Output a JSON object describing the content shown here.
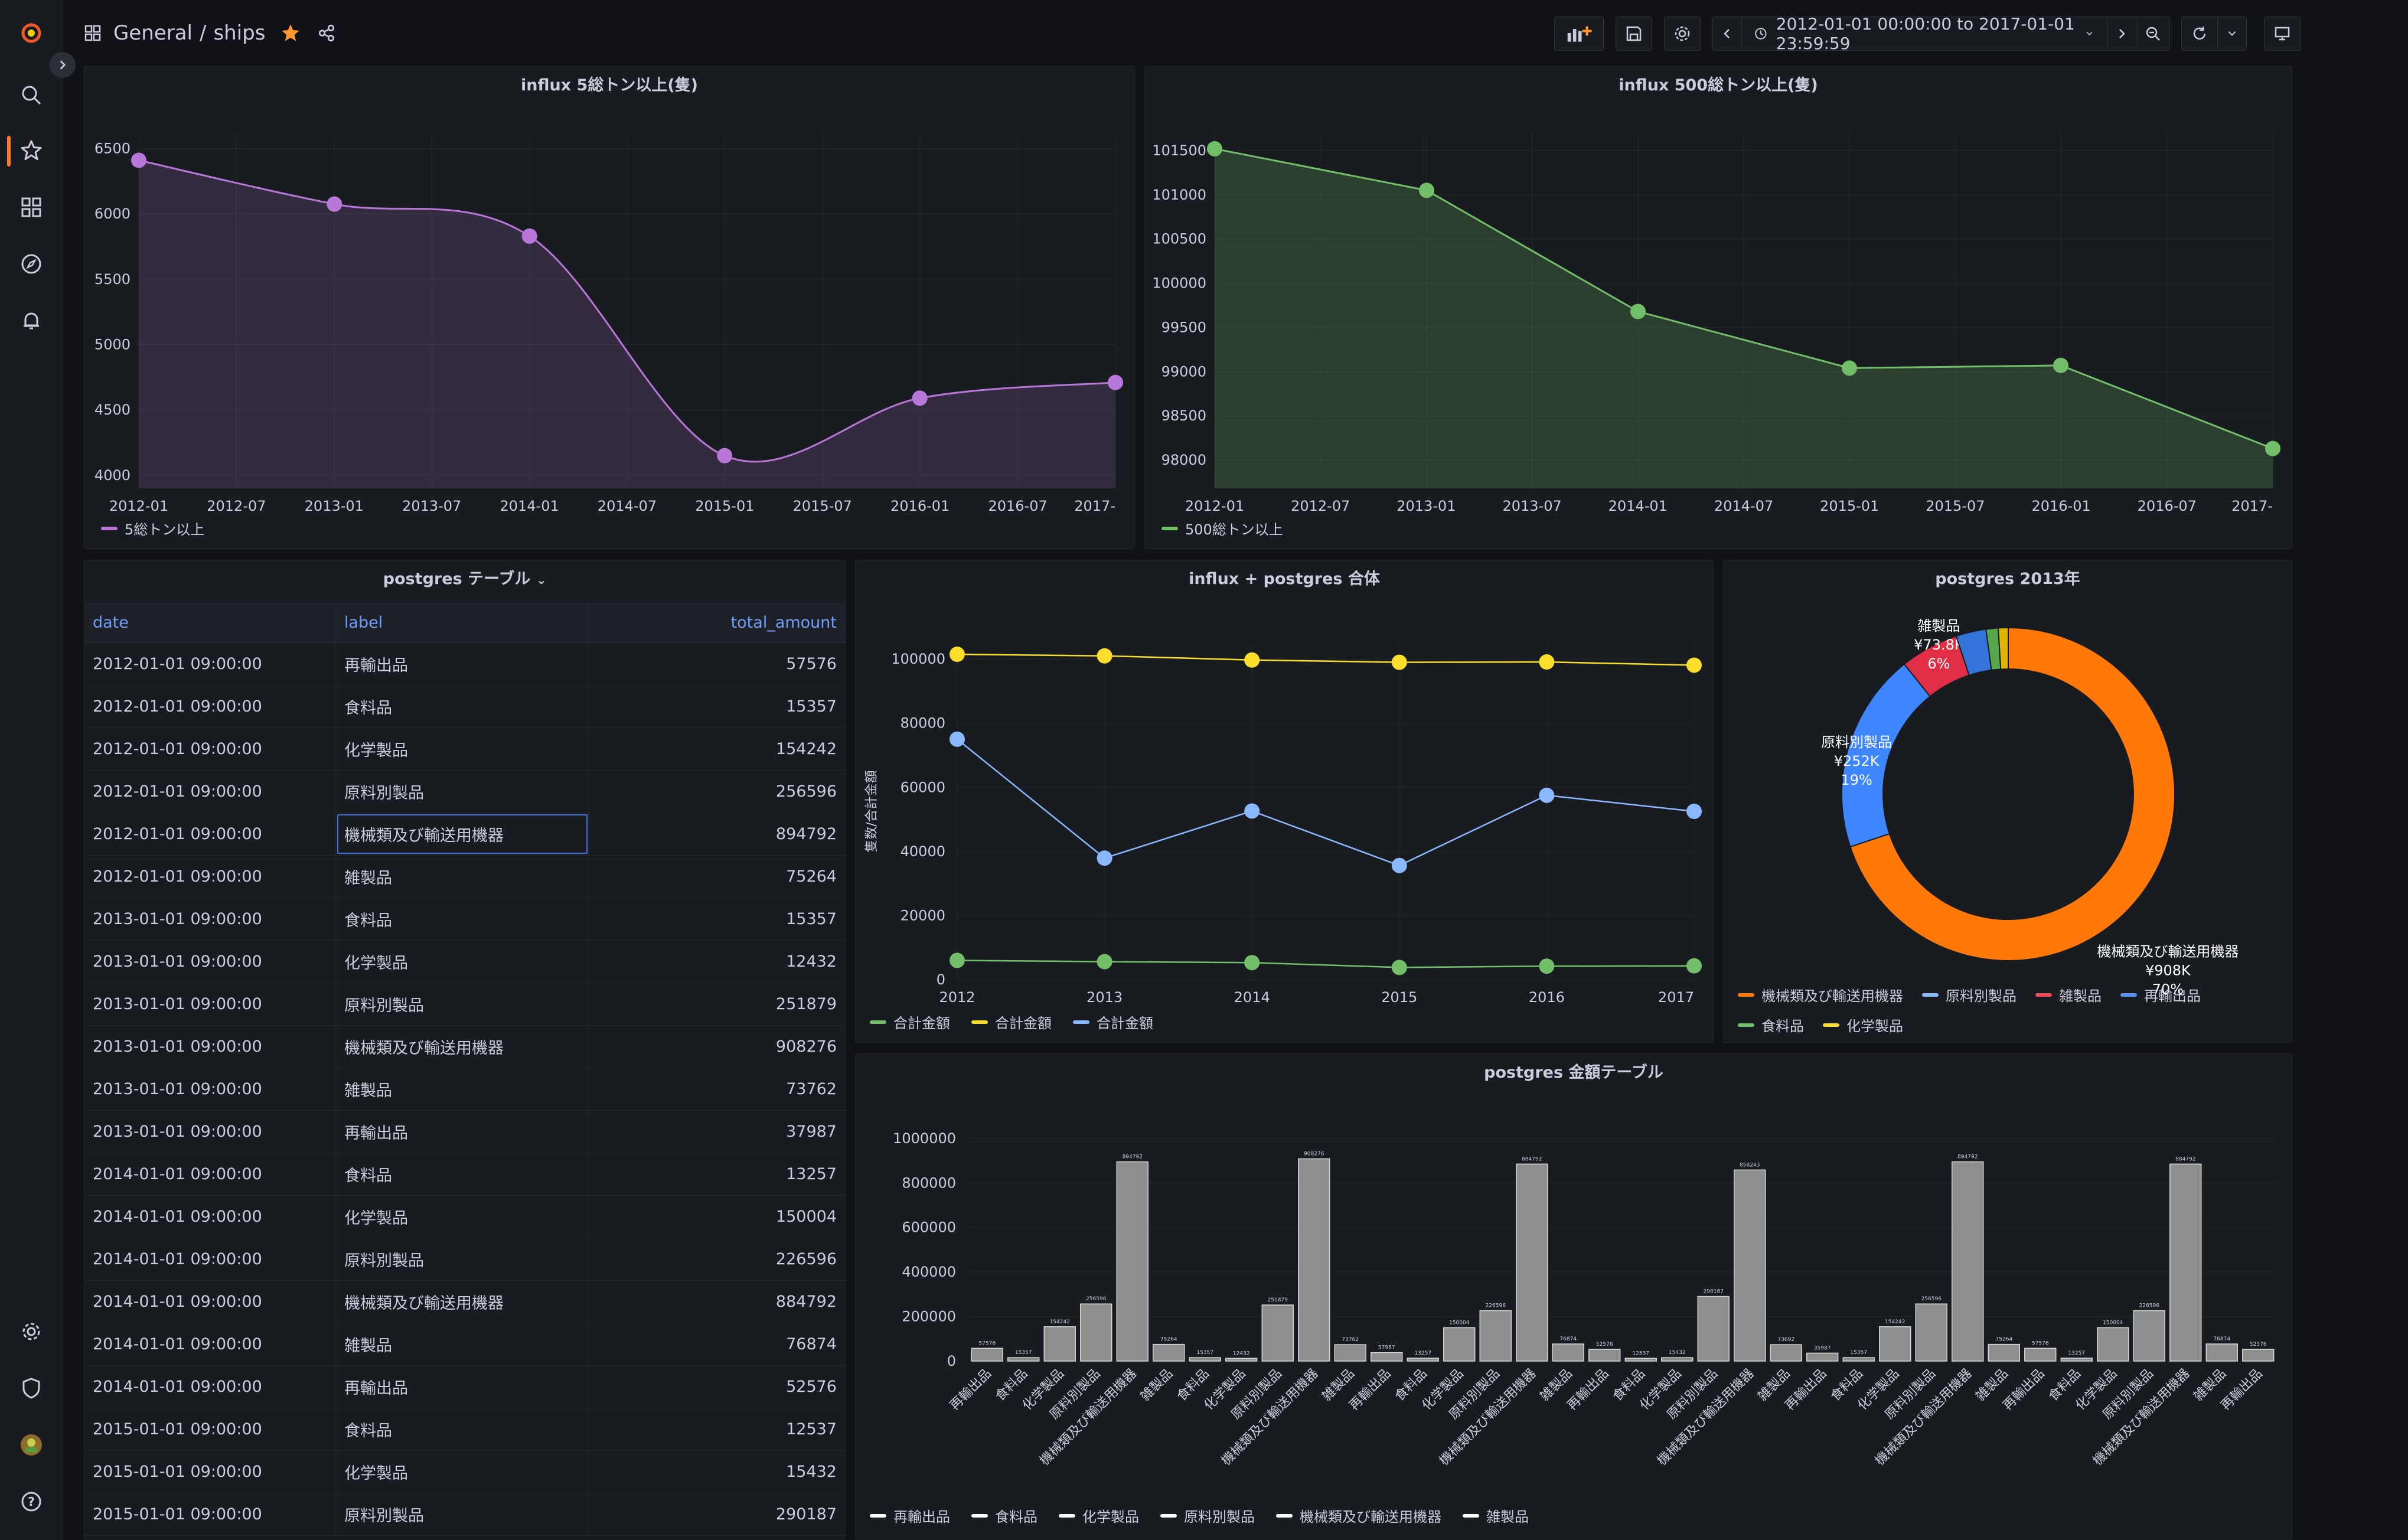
{
  "header": {
    "folder": "General",
    "separator": "/",
    "dashboard": "ships",
    "time_range": "2012-01-01 00:00:00 to 2017-01-01 23:59:59",
    "icons": [
      "grafana-logo-icon",
      "dashboard-grid-icon",
      "star-icon",
      "share-icon",
      "add-panel-icon",
      "save-icon",
      "settings-icon",
      "chevron-left-icon",
      "clock-icon",
      "chevron-down-icon",
      "chevron-right-icon",
      "zoom-out-icon",
      "refresh-icon",
      "tv-mode-icon"
    ]
  },
  "sidebar": {
    "items": [
      "search-icon",
      "starred-icon",
      "dashboards-icon",
      "explore-icon",
      "alerting-icon",
      "configuration-icon",
      "server-admin-icon",
      "user-avatar",
      "help-icon"
    ]
  },
  "colors": {
    "purple": "#b877d9",
    "green": "#73bf69",
    "yellow": "#fade2a",
    "blue": "#8ab8ff",
    "orange": "#ff780a",
    "red": "#f2495c",
    "accent": "#ff7d29"
  },
  "panels": {
    "p1": {
      "title": "influx 5総トン以上(隻)",
      "legend": "5総トン以上"
    },
    "p2": {
      "title": "influx 500総トン以上(隻)",
      "legend": "500総トン以上"
    },
    "p3": {
      "title": "postgres テーブル"
    },
    "p4": {
      "title": "influx + postgres 合体",
      "legend": [
        "合計金額",
        "合計金額",
        "合計金額"
      ]
    },
    "p5": {
      "title": "postgres 2013年",
      "legend": [
        "機械類及び輸送用機器",
        "原料別製品",
        "雑製品",
        "再輸出品",
        "食料品",
        "化学製品"
      ]
    },
    "p6": {
      "title": "postgres 金額テーブル",
      "legend": [
        "再輸出品",
        "食料品",
        "化学製品",
        "原料別製品",
        "機械類及び輸送用機器",
        "雑製品"
      ]
    }
  },
  "table": {
    "columns": [
      "date",
      "label",
      "total_amount"
    ],
    "rows": [
      [
        "2012-01-01 09:00:00",
        "再輸出品",
        "57576"
      ],
      [
        "2012-01-01 09:00:00",
        "食料品",
        "15357"
      ],
      [
        "2012-01-01 09:00:00",
        "化学製品",
        "154242"
      ],
      [
        "2012-01-01 09:00:00",
        "原料別製品",
        "256596"
      ],
      [
        "2012-01-01 09:00:00",
        "機械類及び輸送用機器",
        "894792"
      ],
      [
        "2012-01-01 09:00:00",
        "雑製品",
        "75264"
      ],
      [
        "2013-01-01 09:00:00",
        "食料品",
        "15357"
      ],
      [
        "2013-01-01 09:00:00",
        "化学製品",
        "12432"
      ],
      [
        "2013-01-01 09:00:00",
        "原料別製品",
        "251879"
      ],
      [
        "2013-01-01 09:00:00",
        "機械類及び輸送用機器",
        "908276"
      ],
      [
        "2013-01-01 09:00:00",
        "雑製品",
        "73762"
      ],
      [
        "2013-01-01 09:00:00",
        "再輸出品",
        "37987"
      ],
      [
        "2014-01-01 09:00:00",
        "食料品",
        "13257"
      ],
      [
        "2014-01-01 09:00:00",
        "化学製品",
        "150004"
      ],
      [
        "2014-01-01 09:00:00",
        "原料別製品",
        "226596"
      ],
      [
        "2014-01-01 09:00:00",
        "機械類及び輸送用機器",
        "884792"
      ],
      [
        "2014-01-01 09:00:00",
        "雑製品",
        "76874"
      ],
      [
        "2014-01-01 09:00:00",
        "再輸出品",
        "52576"
      ],
      [
        "2015-01-01 09:00:00",
        "食料品",
        "12537"
      ],
      [
        "2015-01-01 09:00:00",
        "化学製品",
        "15432"
      ],
      [
        "2015-01-01 09:00:00",
        "原料別製品",
        "290187"
      ]
    ]
  },
  "chart_data": [
    {
      "type": "area",
      "title": "influx 5総トン以上(隻)",
      "x_ticks": [
        "2012-01",
        "2012-07",
        "2013-01",
        "2013-07",
        "2014-01",
        "2014-07",
        "2015-01",
        "2015-07",
        "2016-01",
        "2016-07",
        "2017-"
      ],
      "y_ticks": [
        4000,
        4500,
        5000,
        5500,
        6000,
        6500
      ],
      "ylim": [
        3900,
        6620
      ],
      "series": [
        {
          "name": "5総トン以上",
          "x": [
            "2012-01-01",
            "2013-01-01",
            "2014-01-01",
            "2015-01-01",
            "2016-01-01",
            "2017-01-01"
          ],
          "values": [
            6410,
            6075,
            5830,
            4150,
            4590,
            4710
          ]
        }
      ]
    },
    {
      "type": "area",
      "title": "influx 500総トン以上(隻)",
      "x_ticks": [
        "2012-01",
        "2012-07",
        "2013-01",
        "2013-07",
        "2014-01",
        "2014-07",
        "2015-01",
        "2015-07",
        "2016-01",
        "2016-07",
        "2017-"
      ],
      "y_ticks": [
        98000,
        98500,
        99000,
        99500,
        100000,
        100500,
        101000,
        101500
      ],
      "ylim": [
        97680,
        101700
      ],
      "series": [
        {
          "name": "500総トン以上",
          "x": [
            "2012-01-01",
            "2013-01-01",
            "2014-01-01",
            "2015-01-01",
            "2016-01-01",
            "2017-01-01"
          ],
          "values": [
            101520,
            101050,
            99680,
            99040,
            99070,
            98130
          ]
        }
      ]
    },
    {
      "type": "line",
      "title": "influx + postgres 合体",
      "ylabel": "隻数/合計金額",
      "x_ticks": [
        "2012",
        "2013",
        "2014",
        "2015",
        "2016",
        "2017"
      ],
      "y_ticks": [
        0,
        20000,
        40000,
        60000,
        80000,
        100000
      ],
      "ylim": [
        0,
        105000
      ],
      "series": [
        {
          "name": "合計金額",
          "values": [
            6000,
            5600,
            5300,
            3800,
            4200,
            4300
          ]
        },
        {
          "name": "合計金額",
          "values": [
            101500,
            101000,
            99700,
            99000,
            99100,
            98100
          ]
        },
        {
          "name": "合計金額",
          "values": [
            75000,
            37900,
            52600,
            35600,
            57500,
            52500
          ]
        }
      ]
    },
    {
      "type": "pie",
      "title": "postgres 2013年",
      "slices": [
        {
          "name": "機械類及び輸送用機器",
          "value": 908276,
          "label": "機械類及び輸送用機器",
          "amount": "¥908K",
          "percent": "70%"
        },
        {
          "name": "原料別製品",
          "value": 251879,
          "label": "原料別製品",
          "amount": "¥252K",
          "percent": "19%"
        },
        {
          "name": "雑製品",
          "value": 73762,
          "label": "雑製品",
          "amount": "¥73.8K",
          "percent": "6%"
        },
        {
          "name": "再輸出品",
          "value": 37987
        },
        {
          "name": "食料品",
          "value": 15357
        },
        {
          "name": "化学製品",
          "value": 12432
        }
      ]
    },
    {
      "type": "bar",
      "title": "postgres 金額テーブル",
      "y_ticks": [
        0,
        200000,
        400000,
        600000,
        800000,
        1000000
      ],
      "ylim": [
        0,
        1050000
      ],
      "categories": [
        "再輸出品",
        "食料品",
        "化学製品",
        "原料別製品",
        "機械類及び輸送用機器",
        "雑製品",
        "食料品",
        "化学製品",
        "原料別製品",
        "機械類及び輸送用機器",
        "雑製品",
        "再輸出品",
        "食料品",
        "化学製品",
        "原料別製品",
        "機械類及び輸送用機器",
        "雑製品",
        "再輸出品",
        "食料品",
        "化学製品",
        "原料別製品",
        "機械類及び輸送用機器",
        "雑製品",
        "再輸出品",
        "食料品",
        "化学製品",
        "原料別製品",
        "機械類及び輸送用機器",
        "雑製品",
        "再輸出品",
        "食料品",
        "化学製品",
        "原料別製品",
        "機械類及び輸送用機器",
        "雑製品",
        "再輸出品"
      ],
      "values": [
        57576,
        15357,
        154242,
        256596,
        894792,
        75264,
        15357,
        12432,
        251879,
        908276,
        73762,
        37987,
        13257,
        150004,
        226596,
        884792,
        76874,
        52576,
        12537,
        15432,
        290187,
        858243,
        73692,
        35987,
        15357,
        154242,
        256596,
        894792,
        75264,
        57576,
        13257,
        150004,
        226596,
        884792,
        76874,
        52576
      ]
    }
  ]
}
